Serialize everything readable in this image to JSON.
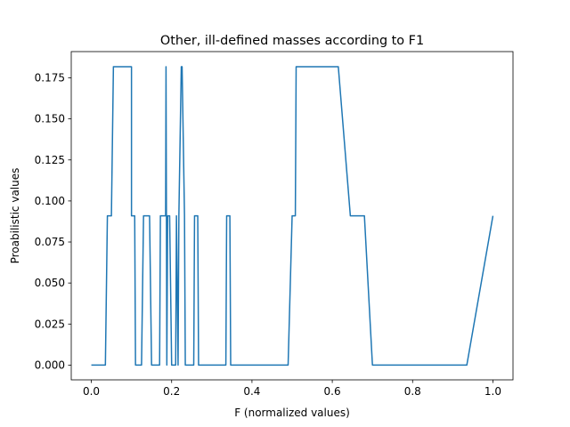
{
  "chart_data": {
    "type": "line",
    "title": "Other, ill-defined masses according to F1",
    "xlabel": "F (normalized values)",
    "ylabel": "Proabilistic values",
    "xlim": [
      -0.05,
      1.05
    ],
    "ylim": [
      -0.009,
      0.191
    ],
    "grid": false,
    "legend": "none",
    "line_color": "#1f77b4",
    "xticks": [
      {
        "value": 0.0,
        "label": "0.0"
      },
      {
        "value": 0.2,
        "label": "0.2"
      },
      {
        "value": 0.4,
        "label": "0.4"
      },
      {
        "value": 0.6,
        "label": "0.6"
      },
      {
        "value": 0.8,
        "label": "0.8"
      },
      {
        "value": 1.0,
        "label": "1.0"
      }
    ],
    "yticks": [
      {
        "value": 0.0,
        "label": "0.000"
      },
      {
        "value": 0.025,
        "label": "0.025"
      },
      {
        "value": 0.05,
        "label": "0.050"
      },
      {
        "value": 0.075,
        "label": "0.075"
      },
      {
        "value": 0.1,
        "label": "0.100"
      },
      {
        "value": 0.125,
        "label": "0.125"
      },
      {
        "value": 0.15,
        "label": "0.150"
      },
      {
        "value": 0.175,
        "label": "0.175"
      }
    ],
    "series": [
      {
        "x": [
          0.0,
          0.035,
          0.04,
          0.05,
          0.055,
          0.1,
          0.1,
          0.108,
          0.11,
          0.125,
          0.13,
          0.145,
          0.15,
          0.17,
          0.172,
          0.185,
          0.186,
          0.188,
          0.19,
          0.195,
          0.2,
          0.21,
          0.212,
          0.216,
          0.218,
          0.224,
          0.226,
          0.232,
          0.234,
          0.255,
          0.257,
          0.265,
          0.267,
          0.335,
          0.337,
          0.345,
          0.347,
          0.49,
          0.5,
          0.508,
          0.51,
          0.615,
          0.645,
          0.647,
          0.68,
          0.7,
          0.935,
          1.0
        ],
        "y": [
          0.0,
          0.0,
          0.0909,
          0.0909,
          0.1818,
          0.1818,
          0.0909,
          0.0909,
          0.0,
          0.0,
          0.0909,
          0.0909,
          0.0,
          0.0,
          0.0909,
          0.0909,
          0.1818,
          0.0,
          0.0909,
          0.0909,
          0.0,
          0.0,
          0.0909,
          0.0,
          0.0909,
          0.1818,
          0.1818,
          0.0909,
          0.0,
          0.0,
          0.0909,
          0.0909,
          0.0,
          0.0,
          0.0909,
          0.0909,
          0.0,
          0.0,
          0.0909,
          0.0909,
          0.1818,
          0.1818,
          0.0909,
          0.0909,
          0.0909,
          0.0,
          0.0,
          0.0909
        ]
      }
    ]
  }
}
